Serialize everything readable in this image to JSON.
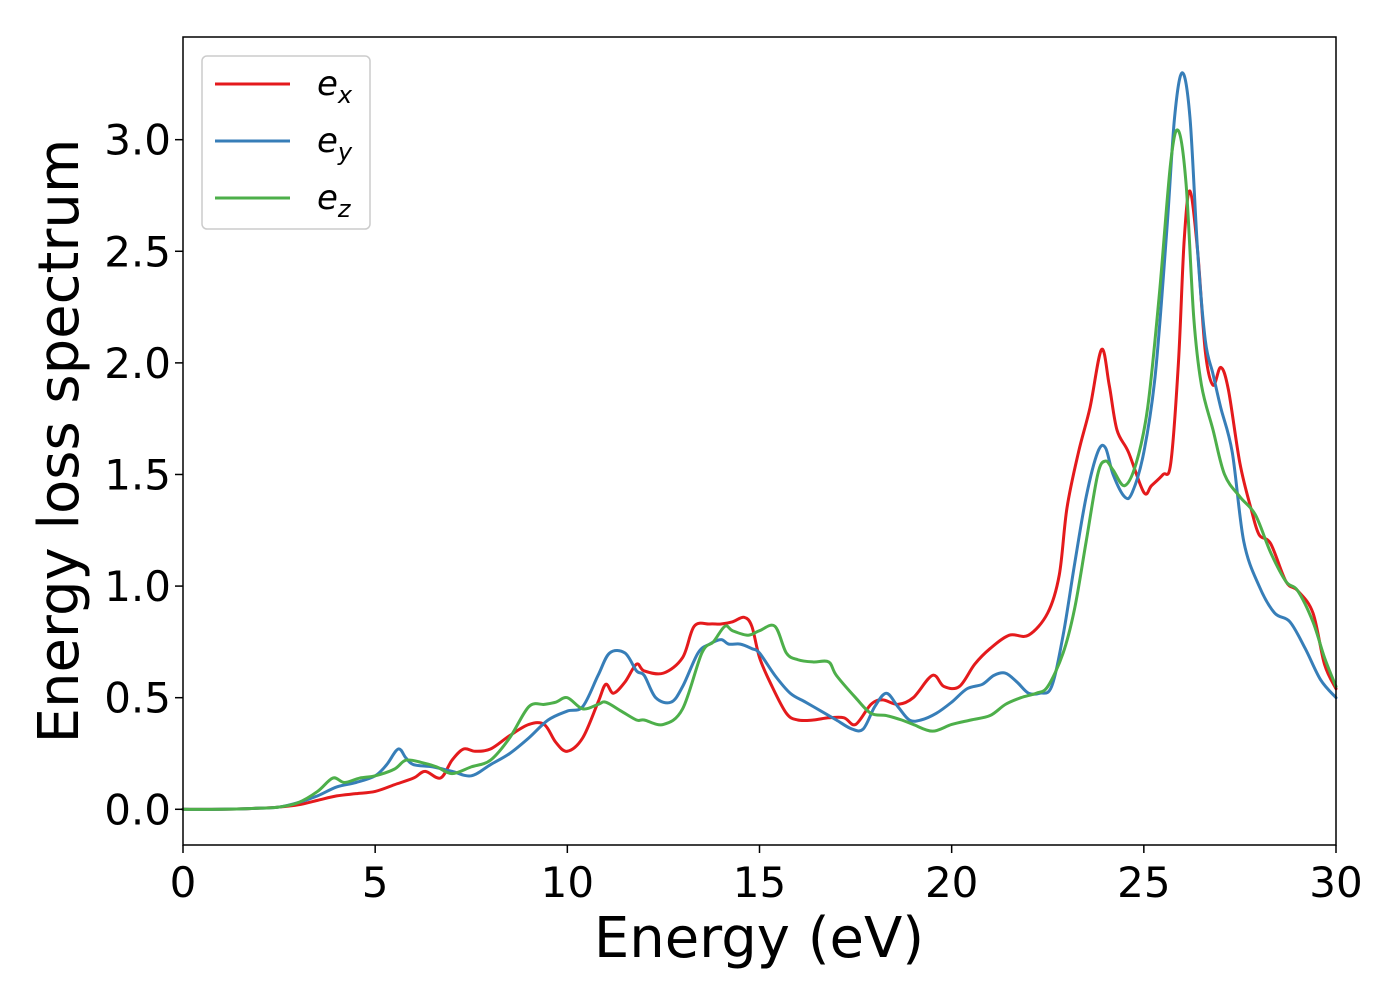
{
  "chart_data": {
    "type": "line",
    "title": "",
    "xlabel": "Energy (eV)",
    "ylabel": "Energy loss spectrum",
    "xlim": [
      0,
      30
    ],
    "ylim": [
      -0.16,
      3.46
    ],
    "xticks": [
      "0",
      "5",
      "10",
      "15",
      "20",
      "25",
      "30"
    ],
    "yticks": [
      "0.0",
      "0.5",
      "1.0",
      "1.5",
      "2.0",
      "2.5",
      "3.0"
    ],
    "grid": false,
    "legend": "upper-left",
    "series": [
      {
        "name": "e_x",
        "base": "e",
        "sub": "x",
        "color": "#e41a1c",
        "x": [
          0,
          1,
          2,
          2.5,
          3,
          3.5,
          4,
          4.5,
          5,
          5.5,
          6,
          6.3,
          6.7,
          7,
          7.3,
          7.6,
          8,
          8.5,
          9,
          9.4,
          9.7,
          10,
          10.4,
          10.8,
          11,
          11.2,
          11.5,
          11.8,
          12,
          12.5,
          13,
          13.3,
          13.7,
          14,
          14.3,
          14.6,
          14.8,
          15,
          15.3,
          15.7,
          16,
          16.4,
          16.8,
          17.2,
          17.5,
          17.9,
          18.2,
          18.6,
          19,
          19.5,
          19.8,
          20.2,
          20.6,
          21,
          21.5,
          22,
          22.5,
          22.8,
          23,
          23.3,
          23.6,
          23.9,
          24.1,
          24.3,
          24.6,
          25,
          25.2,
          25.5,
          25.7,
          25.9,
          26.05,
          26.2,
          26.4,
          26.6,
          26.8,
          27,
          27.2,
          27.5,
          27.8,
          28,
          28.3,
          28.7,
          29,
          29.4,
          29.7,
          30
        ],
        "y": [
          0,
          0,
          0.005,
          0.01,
          0.02,
          0.04,
          0.06,
          0.07,
          0.08,
          0.11,
          0.14,
          0.17,
          0.14,
          0.22,
          0.27,
          0.26,
          0.27,
          0.33,
          0.38,
          0.38,
          0.3,
          0.26,
          0.32,
          0.48,
          0.56,
          0.52,
          0.57,
          0.65,
          0.62,
          0.61,
          0.68,
          0.82,
          0.83,
          0.83,
          0.84,
          0.86,
          0.82,
          0.68,
          0.56,
          0.43,
          0.4,
          0.4,
          0.41,
          0.41,
          0.38,
          0.47,
          0.49,
          0.47,
          0.5,
          0.6,
          0.55,
          0.55,
          0.65,
          0.72,
          0.78,
          0.78,
          0.88,
          1.05,
          1.35,
          1.6,
          1.8,
          2.06,
          1.9,
          1.7,
          1.6,
          1.42,
          1.45,
          1.5,
          1.55,
          2.0,
          2.55,
          2.77,
          2.5,
          2.05,
          1.9,
          1.98,
          1.88,
          1.55,
          1.34,
          1.23,
          1.19,
          1.02,
          0.98,
          0.88,
          0.65,
          0.54
        ]
      },
      {
        "name": "e_y",
        "base": "e",
        "sub": "y",
        "color": "#377eb8",
        "x": [
          0,
          1,
          2,
          2.5,
          3,
          3.5,
          4,
          4.5,
          5,
          5.3,
          5.6,
          5.8,
          6,
          6.5,
          7,
          7.5,
          8,
          8.5,
          9,
          9.5,
          10,
          10.4,
          10.8,
          11.1,
          11.5,
          11.8,
          12,
          12.3,
          12.7,
          13,
          13.4,
          13.7,
          14,
          14.2,
          14.5,
          14.8,
          15,
          15.4,
          15.8,
          16.2,
          16.6,
          17,
          17.4,
          17.7,
          18,
          18.3,
          18.6,
          18.9,
          19.2,
          19.6,
          20,
          20.4,
          20.8,
          21.1,
          21.4,
          21.7,
          22,
          22.3,
          22.6,
          22.9,
          23.2,
          23.5,
          23.8,
          24,
          24.2,
          24.5,
          24.7,
          25,
          25.3,
          25.6,
          25.8,
          26,
          26.2,
          26.4,
          26.6,
          26.8,
          27,
          27.3,
          27.6,
          28,
          28.4,
          28.8,
          29.2,
          29.6,
          30
        ],
        "y": [
          0,
          0,
          0.005,
          0.01,
          0.03,
          0.06,
          0.1,
          0.12,
          0.15,
          0.2,
          0.27,
          0.23,
          0.2,
          0.19,
          0.17,
          0.15,
          0.2,
          0.25,
          0.32,
          0.4,
          0.44,
          0.46,
          0.6,
          0.7,
          0.7,
          0.62,
          0.6,
          0.5,
          0.48,
          0.55,
          0.7,
          0.74,
          0.76,
          0.74,
          0.74,
          0.72,
          0.7,
          0.6,
          0.52,
          0.48,
          0.44,
          0.4,
          0.36,
          0.36,
          0.46,
          0.52,
          0.46,
          0.4,
          0.4,
          0.43,
          0.48,
          0.54,
          0.56,
          0.6,
          0.61,
          0.57,
          0.52,
          0.52,
          0.55,
          0.78,
          1.1,
          1.4,
          1.6,
          1.62,
          1.5,
          1.4,
          1.42,
          1.6,
          1.95,
          2.6,
          3.1,
          3.3,
          3.1,
          2.5,
          2.1,
          1.95,
          1.8,
          1.6,
          1.2,
          1.0,
          0.88,
          0.84,
          0.72,
          0.58,
          0.5
        ]
      },
      {
        "name": "e_z",
        "base": "e",
        "sub": "z",
        "color": "#4daf4a",
        "x": [
          0,
          1,
          2,
          2.5,
          3,
          3.5,
          3.9,
          4.2,
          4.6,
          5,
          5.5,
          5.8,
          6.2,
          6.6,
          7,
          7.5,
          8,
          8.5,
          9,
          9.4,
          9.7,
          10,
          10.4,
          10.8,
          11,
          11.4,
          11.8,
          12,
          12.5,
          13,
          13.5,
          13.8,
          14.1,
          14.3,
          14.7,
          15,
          15.4,
          15.7,
          16,
          16.4,
          16.8,
          17,
          17.5,
          17.9,
          18.3,
          18.7,
          19,
          19.5,
          20,
          20.5,
          21,
          21.4,
          21.8,
          22.2,
          22.5,
          22.9,
          23.2,
          23.5,
          23.8,
          24,
          24.2,
          24.5,
          24.8,
          25.1,
          25.4,
          25.7,
          25.9,
          26.1,
          26.3,
          26.5,
          26.8,
          27.1,
          27.5,
          27.9,
          28.3,
          28.7,
          29,
          29.4,
          29.7,
          30
        ],
        "y": [
          0,
          0,
          0.005,
          0.01,
          0.03,
          0.08,
          0.14,
          0.12,
          0.14,
          0.15,
          0.18,
          0.22,
          0.21,
          0.19,
          0.16,
          0.19,
          0.22,
          0.32,
          0.46,
          0.47,
          0.48,
          0.5,
          0.45,
          0.47,
          0.48,
          0.44,
          0.4,
          0.4,
          0.38,
          0.45,
          0.7,
          0.75,
          0.82,
          0.8,
          0.78,
          0.8,
          0.82,
          0.7,
          0.67,
          0.66,
          0.66,
          0.6,
          0.5,
          0.43,
          0.42,
          0.4,
          0.38,
          0.35,
          0.38,
          0.4,
          0.42,
          0.47,
          0.5,
          0.52,
          0.55,
          0.7,
          0.9,
          1.2,
          1.5,
          1.56,
          1.52,
          1.45,
          1.55,
          1.8,
          2.3,
          2.9,
          3.04,
          2.8,
          2.2,
          1.9,
          1.7,
          1.5,
          1.4,
          1.32,
          1.15,
          1.02,
          0.98,
          0.84,
          0.68,
          0.55
        ]
      }
    ]
  }
}
